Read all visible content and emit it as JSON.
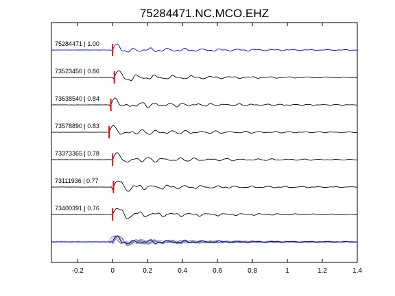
{
  "chart_data": {
    "type": "line",
    "title": "75284471.NC.MCO.EHZ",
    "xlabel": "",
    "ylabel": "",
    "xlim": [
      -0.35,
      1.4
    ],
    "x_ticks": [
      -0.2,
      0,
      0.2,
      0.4,
      0.6,
      0.8,
      1,
      1.2,
      1.4
    ],
    "x_tick_labels": [
      "-0.2",
      "0",
      "0.2",
      "0.4",
      "0.6",
      "0.8",
      "1",
      "1.2",
      "1.4"
    ],
    "grid": false,
    "pick_marker_color": "#ff0000",
    "traces": [
      {
        "label": "75284471 | 1.00",
        "event_id": "75284471",
        "correlation": 1.0,
        "color": "#0000ff",
        "pick_offset": 0.0
      },
      {
        "label": "73523456 | 0.86",
        "event_id": "73523456",
        "correlation": 0.86,
        "color": "#000000",
        "pick_offset": 0.01
      },
      {
        "label": "73638540 | 0.84",
        "event_id": "73638540",
        "correlation": 0.84,
        "color": "#000000",
        "pick_offset": -0.01
      },
      {
        "label": "73578890 | 0.83",
        "event_id": "73578890",
        "correlation": 0.83,
        "color": "#000000",
        "pick_offset": -0.02
      },
      {
        "label": "73373365 | 0.78",
        "event_id": "73373365",
        "correlation": 0.78,
        "color": "#000000",
        "pick_offset": 0.0
      },
      {
        "label": "73111936 | 0.77",
        "event_id": "73111936",
        "correlation": 0.77,
        "color": "#000000",
        "pick_offset": 0.005
      },
      {
        "label": "73400391 | 0.76",
        "event_id": "73400391",
        "correlation": 0.76,
        "color": "#000000",
        "pick_offset": 0.0
      }
    ],
    "stack": {
      "primary_color": "#0000ff",
      "others_color": "#808080"
    }
  }
}
